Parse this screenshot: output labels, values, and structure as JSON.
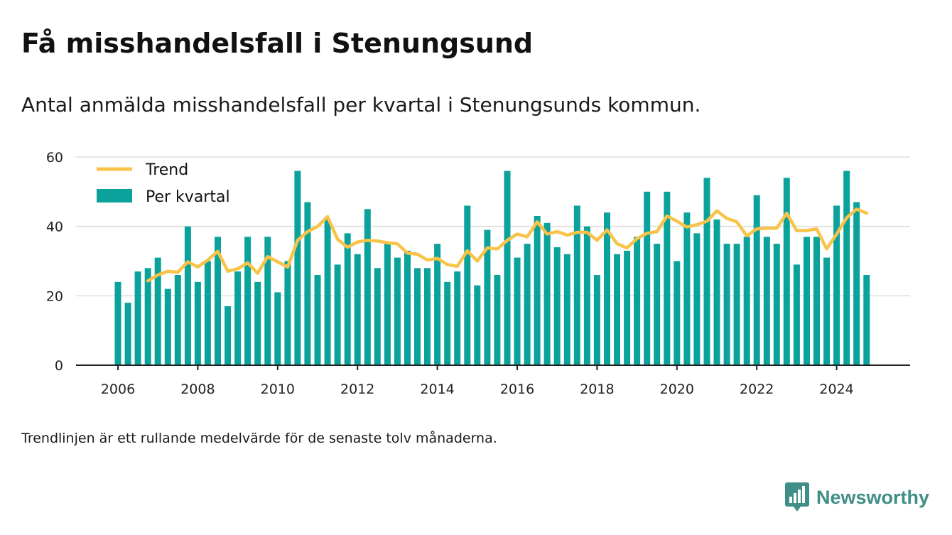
{
  "title": "Få misshandelsfall i Stenungsund",
  "subtitle": "Antal anmälda misshandelsfall per kvartal i Stenungsunds kommun.",
  "footnote": "Trendlinjen är ett rullande medelvärde för de senaste tolv månaderna.",
  "brand": {
    "name": "Newsworthy",
    "icon": "bar-chart-bubble-icon"
  },
  "colors": {
    "bars": "#0aa29a",
    "trend": "#f8c348",
    "grid": "#dddddd",
    "axis": "#222222"
  },
  "chart_data": {
    "type": "bar",
    "x_unit": "quarter",
    "start": "2006 Q1",
    "ylim": [
      0,
      60
    ],
    "yticks": [
      0,
      20,
      40,
      60
    ],
    "xticks": [
      "2006",
      "2008",
      "2010",
      "2012",
      "2014",
      "2016",
      "2018",
      "2020",
      "2022",
      "2024"
    ],
    "grid": true,
    "legend_position": "top-left",
    "series": [
      {
        "name": "Per kvartal",
        "type": "bar",
        "values": [
          24,
          18,
          27,
          28,
          31,
          22,
          26,
          40,
          24,
          30,
          37,
          17,
          27,
          37,
          24,
          37,
          21,
          30,
          56,
          47,
          26,
          42,
          29,
          38,
          32,
          45,
          28,
          35,
          31,
          33,
          28,
          28,
          35,
          24,
          27,
          46,
          23,
          39,
          26,
          56,
          31,
          35,
          43,
          41,
          34,
          32,
          46,
          40,
          26,
          44,
          32,
          33,
          37,
          50,
          35,
          50,
          30,
          44,
          38,
          54,
          42,
          35,
          35,
          37,
          49,
          37,
          35,
          54,
          29,
          37,
          37,
          31,
          46,
          56,
          47,
          26
        ]
      },
      {
        "name": "Trend",
        "type": "line",
        "values": [
          null,
          null,
          null,
          24.3,
          26,
          27.1,
          26.8,
          29.8,
          28.3,
          30.3,
          32.8,
          27.1,
          27.8,
          29.5,
          26.5,
          31.3,
          29.8,
          28.3,
          36,
          38.5,
          40,
          42.8,
          36.3,
          34,
          35.5,
          36,
          35.8,
          35.3,
          35,
          32.3,
          32,
          30.3,
          30.8,
          29,
          28.5,
          33,
          30,
          33.8,
          33.5,
          36,
          37.8,
          37,
          41.3,
          37.8,
          38.5,
          37.5,
          38.3,
          38.3,
          36,
          39,
          35,
          33.8,
          36.5,
          38,
          38.5,
          43,
          41.5,
          39.8,
          40.5,
          41.5,
          44.5,
          42.3,
          41.3,
          37.3,
          39.3,
          39.5,
          39.5,
          43.8,
          38.8,
          38.8,
          39.3,
          33.5,
          37.8,
          42.5,
          45,
          43.8
        ]
      }
    ]
  }
}
